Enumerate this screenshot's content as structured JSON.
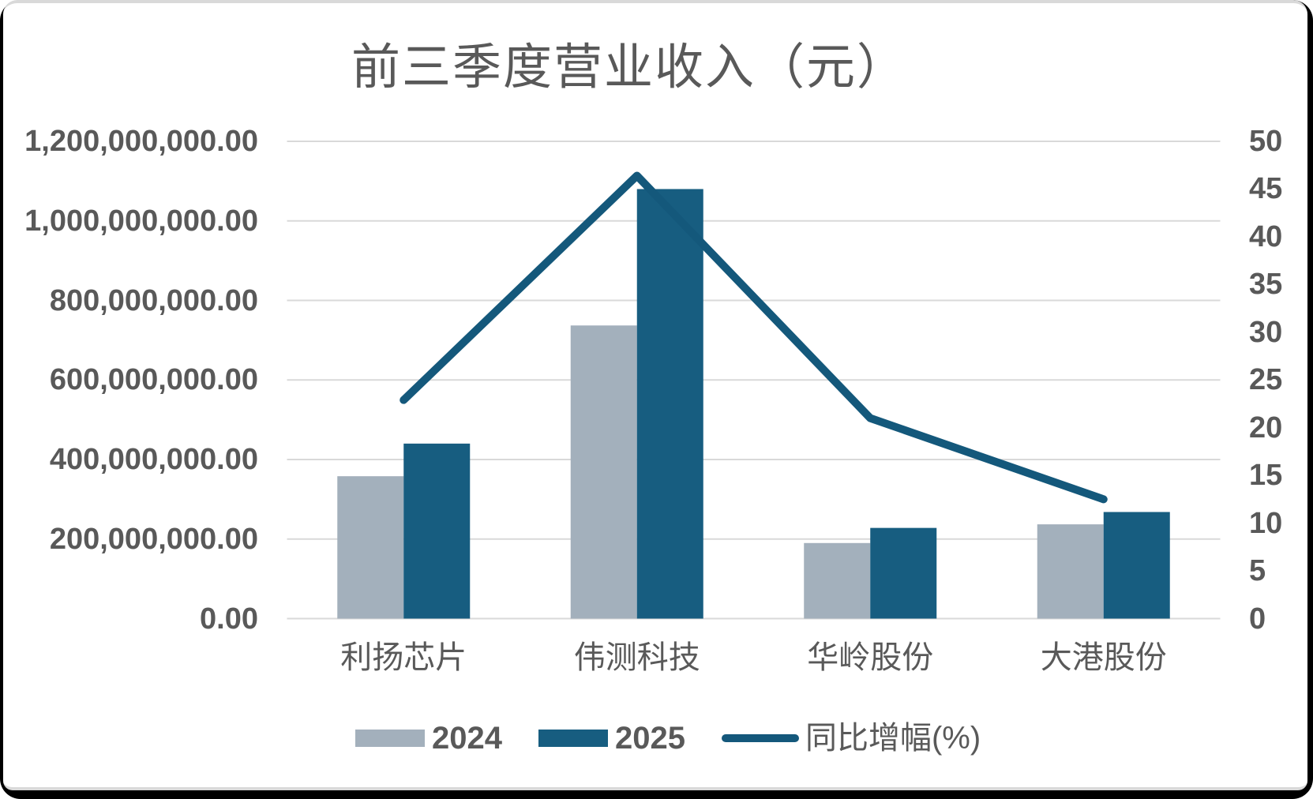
{
  "frame": {
    "border_color": "#000000",
    "card_background": "#ffffff",
    "edge_line_color": "#d9d9d9"
  },
  "chart_data": {
    "type": "combo",
    "subtype": "grouped-bar-with-line",
    "title": "前三季度营业收入（元）",
    "categories": [
      "利扬芯片",
      "伟测科技",
      "华岭股份",
      "大港股份"
    ],
    "bar_series": [
      {
        "name": "2024",
        "color": "#a3b0bc",
        "values": [
          358000000,
          737000000,
          190000000,
          237000000
        ]
      },
      {
        "name": "2025",
        "color": "#175d80",
        "values": [
          440000000,
          1080000000,
          228000000,
          268000000
        ]
      }
    ],
    "line_series": {
      "name": "同比增幅(%)",
      "color": "#14587b",
      "axis": "right",
      "values": [
        22.9,
        46.4,
        21.0,
        12.5
      ]
    },
    "left_axis": {
      "min": 0,
      "max": 1200000000,
      "tick_step": 200000000,
      "tick_labels": [
        "1,200,000,000.00",
        "1,000,000,000.00",
        "800,000,000.00",
        "600,000,000.00",
        "400,000,000.00",
        "200,000,000.00",
        "0.00"
      ]
    },
    "right_axis": {
      "min": 0,
      "max": 50,
      "tick_step": 5,
      "tick_labels": [
        "50",
        "45",
        "40",
        "35",
        "30",
        "25",
        "20",
        "15",
        "10",
        "5",
        "0"
      ]
    },
    "grid": {
      "horizontal": true,
      "color": "#d9d9d9"
    },
    "legend_position": "bottom",
    "text_color": "#595959"
  }
}
